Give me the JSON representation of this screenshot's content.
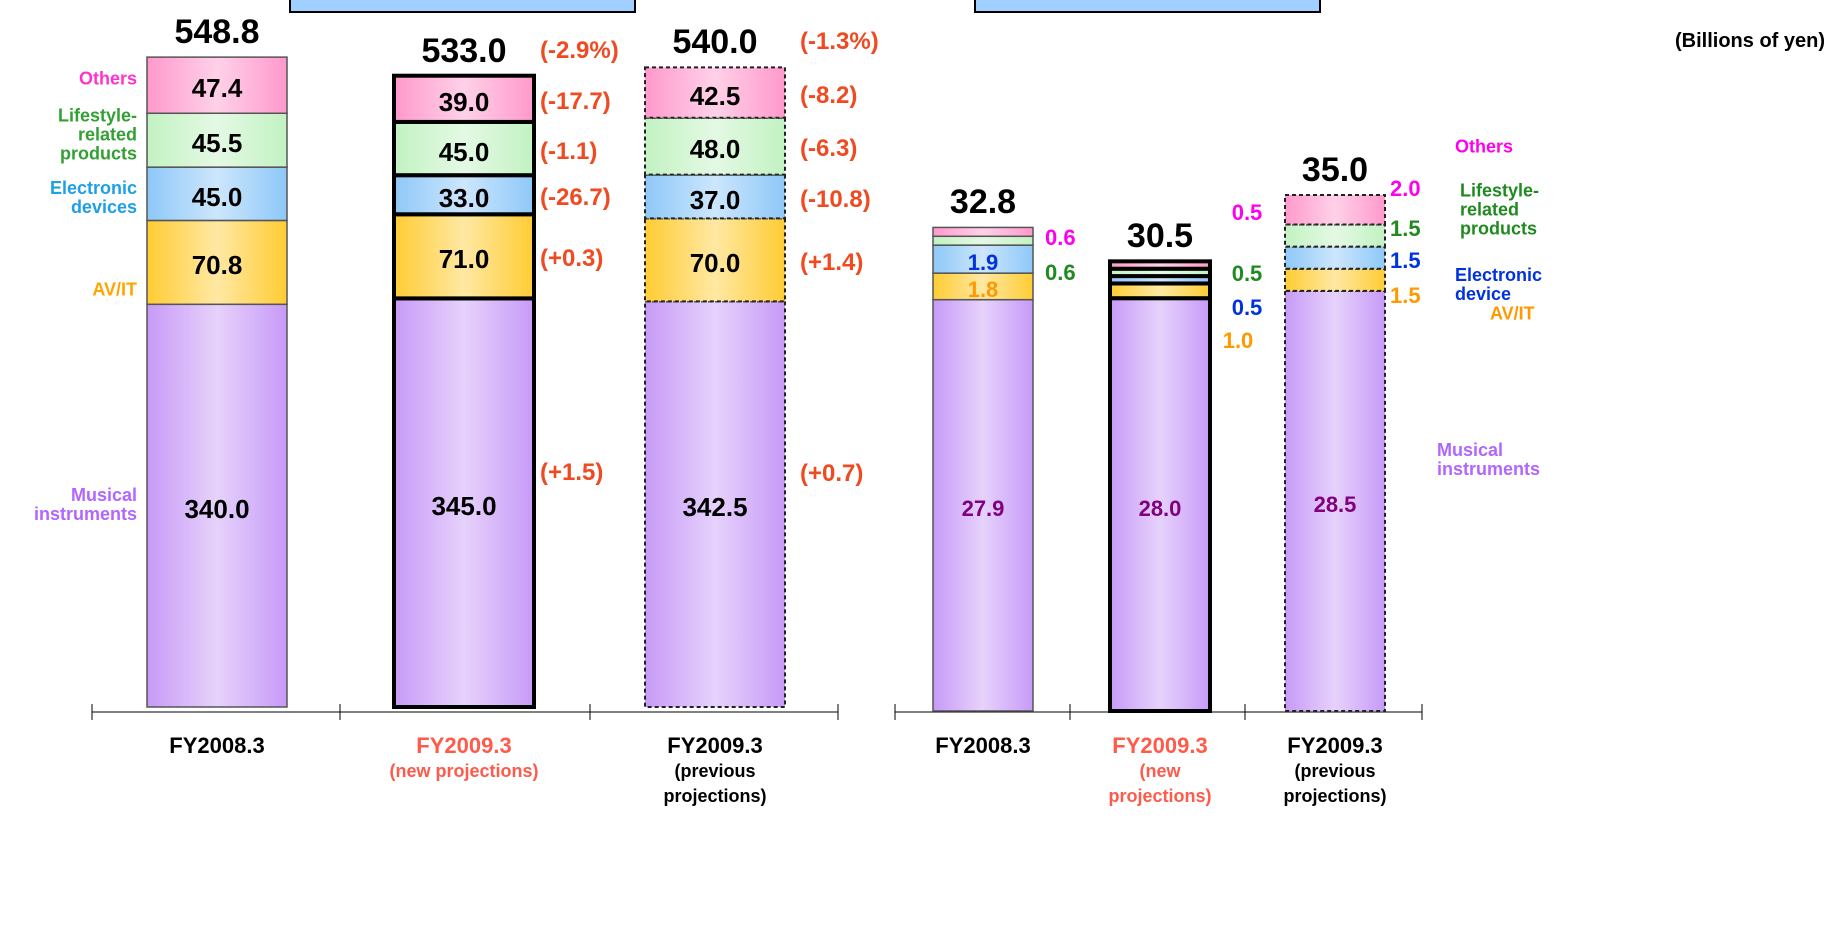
{
  "chart_data": [
    {
      "type": "stacked_bar",
      "categories": [
        [
          "FY2008.3"
        ],
        [
          "FY2009.3",
          "(new projections)"
        ],
        [
          "FY2009.3",
          "(previous",
          "projections)"
        ]
      ],
      "category_colors": [
        "#000000",
        "#ff5a4a",
        "#000000"
      ],
      "bar_styles": [
        "solid",
        "bold",
        "dashed"
      ],
      "series": [
        {
          "name": "Musical instruments",
          "color": "#c79af7",
          "text_color": "#b266ff",
          "values": [
            340,
            345,
            342.5
          ],
          "value_labels": [
            "340.0",
            "345.0",
            "342.5"
          ],
          "changes": [
            null,
            "(+1.5)",
            "(+0.7)"
          ]
        },
        {
          "name": "AV/IT",
          "color": "#ffcc33",
          "text_color": "#ffa500",
          "values": [
            70.8,
            71,
            70
          ],
          "value_labels": [
            "70.8",
            "71.0",
            "70.0"
          ],
          "changes": [
            null,
            "(+0.3)",
            "(+1.4)"
          ]
        },
        {
          "name": "Electronic devices",
          "color": "#8ec8f8",
          "text_color": "#1e9fe8",
          "values": [
            45,
            33,
            37
          ],
          "value_labels": [
            "45.0",
            "33.0",
            "37.0"
          ],
          "changes": [
            null,
            "(-26.7)",
            "(-10.8)"
          ]
        },
        {
          "name": "Lifestyle-related products",
          "color": "#c2f2c2",
          "text_color": "#33a033",
          "values": [
            45.5,
            45,
            48
          ],
          "value_labels": [
            "45.5",
            "45.0",
            "48.0"
          ],
          "changes": [
            null,
            "(-1.1)",
            "(-6.3)"
          ]
        },
        {
          "name": "Others",
          "color": "#ff99cc",
          "text_color": "#ff33cc",
          "values": [
            47.4,
            39,
            42.5
          ],
          "value_labels": [
            "47.4",
            "39.0",
            "42.5"
          ],
          "changes": [
            null,
            "(-17.7)",
            "(-8.2)"
          ]
        }
      ],
      "totals": [
        548.8,
        533,
        540
      ],
      "total_labels": [
        "548.8",
        "533.0",
        "540.0"
      ],
      "total_changes": [
        null,
        "(-2.9%)",
        "(-1.3%)"
      ]
    },
    {
      "type": "stacked_bar",
      "unit": "(Billions of yen)",
      "categories": [
        [
          "FY2008.3"
        ],
        [
          "FY2009.3",
          "(new",
          "projections)"
        ],
        [
          "FY2009.3",
          "(previous",
          "projections)"
        ]
      ],
      "category_colors": [
        "#000000",
        "#ff5a4a",
        "#000000"
      ],
      "bar_styles": [
        "solid",
        "bold",
        "dashed"
      ],
      "series": [
        {
          "name": "Musical instruments",
          "color": "#c79af7",
          "text_color": "#b266ff",
          "values": [
            27.9,
            28,
            28.5
          ],
          "value_labels": [
            "27.9",
            "28.0",
            "28.5"
          ]
        },
        {
          "name": "AV/IT",
          "color": "#ffcc33",
          "text_color": "#ff9900",
          "values": [
            1.8,
            1,
            1.5
          ],
          "value_labels": [
            "1.8",
            "1.0",
            "1.5"
          ]
        },
        {
          "name": "Electronic device",
          "color": "#8ec8f8",
          "text_color": "#0033dd",
          "values": [
            1.9,
            0.5,
            1.5
          ],
          "value_labels": [
            "1.9",
            "0.5",
            "1.5"
          ]
        },
        {
          "name": "Lifestyle-related products",
          "color": "#c2f2c2",
          "text_color": "#1f8a1f",
          "values": [
            0.6,
            0.5,
            1.5
          ],
          "value_labels": [
            "0.6",
            "0.5",
            "1.5"
          ]
        },
        {
          "name": "Others",
          "color": "#ff99cc",
          "text_color": "#ff00ee",
          "values": [
            0.6,
            0.5,
            2
          ],
          "value_labels": [
            "0.6",
            "0.5",
            "2.0"
          ]
        }
      ],
      "totals": [
        32.8,
        30.5,
        35
      ],
      "total_labels": [
        "32.8",
        "30.5",
        "35.0"
      ]
    }
  ]
}
